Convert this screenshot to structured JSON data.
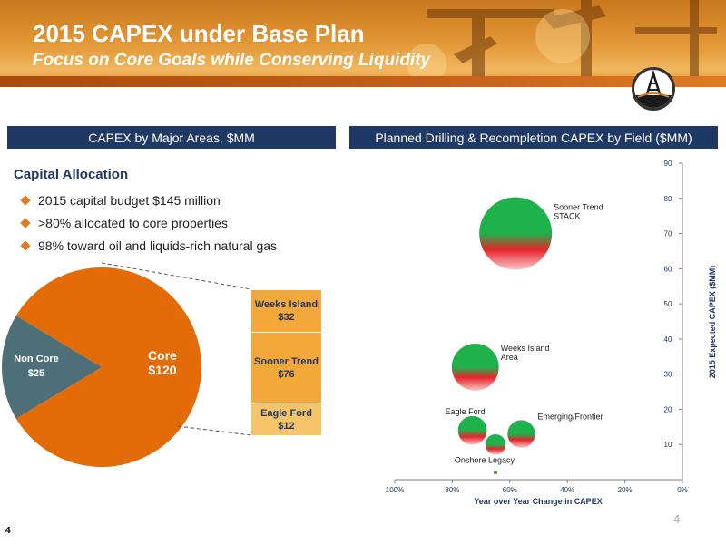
{
  "header": {
    "title": "2015 CAPEX under Base Plan",
    "subtitle": "Focus on Core Goals while Conserving Liquidity"
  },
  "banners": {
    "left": "CAPEX by Major Areas, $MM",
    "right": "Planned Drilling & Recompletion CAPEX by Field ($MM)"
  },
  "allocation": {
    "title": "Capital Allocation",
    "bullets": [
      "2015 capital budget $145 million",
      ">80% allocated to core properties",
      "98% toward oil and liquids-rich natural gas"
    ]
  },
  "colors": {
    "navy": "#1f3864",
    "core_orange": "#e36c09",
    "noncore_teal": "#4e6e78",
    "stack_light": "#f7c46a",
    "stack_mid": "#f5a83a",
    "bubble_green": "#1fb14b",
    "bubble_red": "#e8242b"
  },
  "chart_data": [
    {
      "type": "pie",
      "labels": [
        "Core",
        "Non Core"
      ],
      "values": [
        120,
        25
      ],
      "display": [
        "$120",
        "$25"
      ],
      "breakdown": {
        "of": "Core",
        "type": "stacked-bar",
        "segments": [
          {
            "name": "Weeks Island",
            "value": 32,
            "label": "$32"
          },
          {
            "name": "Sooner Trend",
            "value": 76,
            "label": "$76"
          },
          {
            "name": "Eagle Ford",
            "value": 12,
            "label": "$12"
          }
        ]
      }
    },
    {
      "type": "scatter",
      "title": "",
      "xlabel": "Year over Year Change in CAPEX",
      "ylabel": "2015 Expected CAPEX ($MM)",
      "xlim": [
        100,
        0
      ],
      "ylim": [
        0,
        90
      ],
      "x_ticks": [
        "100%",
        "80%",
        "60%",
        "40%",
        "20%",
        "0%"
      ],
      "y_ticks": [
        "10",
        "20",
        "30",
        "40",
        "50",
        "60",
        "70",
        "80",
        "90"
      ],
      "points": [
        {
          "name": "Sooner Trend STACK",
          "label_lines": [
            "Sooner Trend",
            "STACK"
          ],
          "x": 58,
          "y": 70,
          "size": 76
        },
        {
          "name": "Weeks Island Area",
          "label_lines": [
            "Weeks Island",
            "Area"
          ],
          "x": 72,
          "y": 32,
          "size": 32
        },
        {
          "name": "Eagle Ford",
          "label_lines": [
            "Eagle Ford"
          ],
          "x": 73,
          "y": 14,
          "size": 12
        },
        {
          "name": "Emerging/Frontier",
          "label_lines": [
            "Emerging/Frontier"
          ],
          "x": 56,
          "y": 13,
          "size": 11
        },
        {
          "name": "Onshore Legacy",
          "label_lines": [
            "Onshore Legacy"
          ],
          "x": 65,
          "y": 10,
          "size": 6
        },
        {
          "name": "",
          "label_lines": [],
          "x": 65,
          "y": 2,
          "size": 0.2
        }
      ]
    }
  ],
  "footer": {
    "slide_number": "4",
    "corner_number": "4"
  }
}
